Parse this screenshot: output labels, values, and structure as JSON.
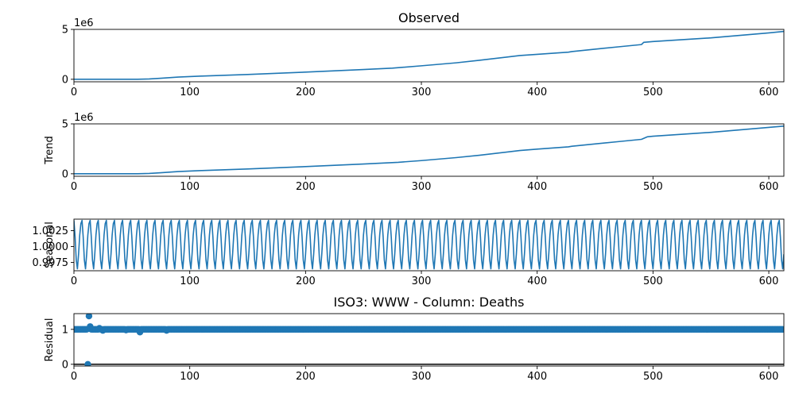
{
  "chart_data": [
    {
      "type": "line",
      "title": "Observed",
      "ylabel": "",
      "xlabel": "",
      "offset_label": "1e6",
      "xlim": [
        0,
        613
      ],
      "ylim": [
        -0.25,
        5.0
      ],
      "xticks": [
        0,
        100,
        200,
        300,
        400,
        500,
        600
      ],
      "yticks": [
        0,
        5
      ],
      "color": "#1f77b4",
      "points": [
        [
          0,
          0.0
        ],
        [
          55,
          0.0
        ],
        [
          65,
          0.03
        ],
        [
          75,
          0.1
        ],
        [
          90,
          0.22
        ],
        [
          110,
          0.32
        ],
        [
          150,
          0.48
        ],
        [
          200,
          0.72
        ],
        [
          250,
          0.98
        ],
        [
          275,
          1.12
        ],
        [
          300,
          1.35
        ],
        [
          330,
          1.65
        ],
        [
          350,
          1.9
        ],
        [
          385,
          2.38
        ],
        [
          400,
          2.5
        ],
        [
          427,
          2.72
        ],
        [
          430,
          2.78
        ],
        [
          470,
          3.25
        ],
        [
          490,
          3.48
        ],
        [
          492,
          3.7
        ],
        [
          500,
          3.78
        ],
        [
          550,
          4.15
        ],
        [
          600,
          4.65
        ],
        [
          613,
          4.8
        ]
      ]
    },
    {
      "type": "line",
      "title": "",
      "ylabel": "Trend",
      "xlabel": "",
      "offset_label": "1e6",
      "xlim": [
        0,
        613
      ],
      "ylim": [
        -0.25,
        5.0
      ],
      "xticks": [
        0,
        100,
        200,
        300,
        400,
        500,
        600
      ],
      "yticks": [
        0,
        5
      ],
      "color": "#1f77b4",
      "points": [
        [
          0,
          0.0
        ],
        [
          55,
          0.0
        ],
        [
          65,
          0.03
        ],
        [
          75,
          0.1
        ],
        [
          90,
          0.22
        ],
        [
          110,
          0.32
        ],
        [
          150,
          0.48
        ],
        [
          200,
          0.72
        ],
        [
          250,
          0.98
        ],
        [
          280,
          1.15
        ],
        [
          300,
          1.32
        ],
        [
          330,
          1.62
        ],
        [
          350,
          1.85
        ],
        [
          385,
          2.33
        ],
        [
          400,
          2.47
        ],
        [
          427,
          2.7
        ],
        [
          430,
          2.76
        ],
        [
          470,
          3.22
        ],
        [
          490,
          3.45
        ],
        [
          495,
          3.7
        ],
        [
          500,
          3.76
        ],
        [
          550,
          4.15
        ],
        [
          600,
          4.65
        ],
        [
          613,
          4.78
        ]
      ]
    },
    {
      "type": "line",
      "title": "",
      "ylabel": "Seasonal",
      "xlabel": "",
      "xlim": [
        0,
        613
      ],
      "ylim": [
        0.9962,
        1.0043
      ],
      "xticks": [
        0,
        100,
        200,
        300,
        400,
        500,
        600
      ],
      "yticks": [
        0.9975,
        1.0,
        1.0025
      ],
      "ytick_labels": [
        "0.9975",
        "1.0000",
        "1.0025"
      ],
      "color": "#1f77b4",
      "period": 7,
      "seasonal_cycle": [
        1.0041,
        1.0015,
        0.9979,
        0.9965,
        0.9988,
        1.0018,
        1.0036
      ]
    },
    {
      "type": "scatter",
      "title": "ISO3: WWW - Column: Deaths",
      "ylabel": "Residual",
      "xlabel": "",
      "xlim": [
        0,
        613
      ],
      "ylim": [
        -0.05,
        1.45
      ],
      "xticks": [
        0,
        100,
        200,
        300,
        400,
        500,
        600
      ],
      "yticks": [
        0,
        1
      ],
      "color": "#1f77b4",
      "baseline": 0,
      "baseline_color": "#000000",
      "default_value": 1.0,
      "n_points": 613,
      "outliers": [
        [
          12,
          0.0
        ],
        [
          13,
          1.38
        ],
        [
          14,
          1.08
        ],
        [
          22,
          1.03
        ],
        [
          25,
          0.97
        ],
        [
          57,
          0.92
        ],
        [
          80,
          0.97
        ],
        [
          45,
          0.98
        ]
      ]
    }
  ]
}
